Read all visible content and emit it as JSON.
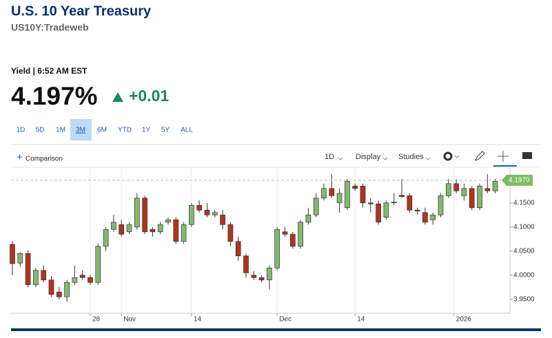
{
  "header": {
    "title": "U.S. 10 Year Treasury",
    "subtitle": "US10Y:Tradeweb",
    "quote_label": "Yield | 6:52 AM EST",
    "price": "4.197%",
    "change": "+0.01"
  },
  "ranges": {
    "items": [
      "1D",
      "5D",
      "1M",
      "3M",
      "6M",
      "YTD",
      "1Y",
      "5Y",
      "ALL"
    ],
    "active": 3
  },
  "toolbar": {
    "comparison": "Comparison",
    "interval": "1D",
    "display": "Display",
    "studies": "Studies"
  },
  "chart_data": {
    "type": "candlestick",
    "open": [
      4.064,
      4.025,
      4.045,
      3.98,
      4.01,
      3.99,
      3.965,
      3.955,
      3.985,
      4.0,
      3.995,
      3.985,
      4.06,
      4.095,
      4.105,
      4.09,
      4.1,
      4.16,
      4.095,
      4.09,
      4.11,
      4.115,
      4.07,
      4.105,
      4.145,
      4.135,
      4.125,
      4.125,
      4.105,
      4.07,
      4.04,
      4.0,
      3.995,
      3.99,
      4.015,
      4.09,
      4.085,
      4.06,
      4.11,
      4.125,
      4.16,
      4.18,
      4.15,
      4.14,
      4.185,
      4.185,
      4.15,
      4.148,
      4.12,
      4.15,
      4.166,
      4.165,
      4.135,
      4.13,
      4.115,
      4.125,
      4.165,
      4.19,
      4.165,
      4.18,
      4.14,
      4.18,
      4.175
    ],
    "high": [
      4.071,
      4.048,
      4.052,
      4.015,
      4.02,
      3.998,
      3.975,
      3.99,
      4.02,
      4.01,
      4.0,
      4.065,
      4.1,
      4.125,
      4.115,
      4.11,
      4.17,
      4.165,
      4.1,
      4.11,
      4.12,
      4.12,
      4.11,
      4.15,
      4.155,
      4.15,
      4.135,
      4.135,
      4.11,
      4.08,
      4.045,
      4.008,
      4.0,
      4.02,
      4.1,
      4.1,
      4.09,
      4.115,
      4.14,
      4.17,
      4.19,
      4.21,
      4.18,
      4.2,
      4.19,
      4.19,
      4.16,
      4.155,
      4.155,
      4.17,
      4.2,
      4.17,
      4.14,
      4.14,
      4.13,
      4.17,
      4.2,
      4.2,
      4.19,
      4.185,
      4.19,
      4.21,
      4.2
    ],
    "low": [
      4.0,
      4.018,
      3.975,
      3.975,
      3.985,
      3.955,
      3.95,
      3.945,
      3.98,
      3.99,
      3.98,
      3.98,
      4.05,
      4.09,
      4.08,
      4.085,
      4.095,
      4.085,
      4.08,
      4.085,
      4.105,
      4.065,
      4.065,
      4.1,
      4.13,
      4.12,
      4.12,
      4.095,
      4.06,
      4.03,
      3.995,
      3.99,
      3.985,
      3.97,
      4.01,
      4.08,
      4.055,
      4.055,
      4.105,
      4.12,
      4.155,
      4.16,
      4.13,
      4.135,
      4.175,
      4.14,
      4.13,
      4.105,
      4.115,
      4.145,
      4.16,
      4.13,
      4.125,
      4.105,
      4.105,
      4.12,
      4.16,
      4.17,
      4.155,
      4.135,
      4.135,
      4.17,
      4.17
    ],
    "close": [
      4.024,
      4.045,
      3.98,
      4.01,
      3.99,
      3.96,
      3.955,
      3.985,
      3.995,
      3.995,
      3.985,
      4.06,
      4.095,
      4.11,
      4.085,
      4.105,
      4.16,
      4.09,
      4.09,
      4.105,
      4.115,
      4.07,
      4.105,
      4.145,
      4.135,
      4.125,
      4.13,
      4.105,
      4.07,
      4.04,
      4.005,
      3.995,
      3.99,
      4.015,
      4.095,
      4.085,
      4.06,
      4.11,
      4.125,
      4.16,
      4.18,
      4.165,
      4.17,
      4.195,
      4.18,
      4.15,
      4.148,
      4.11,
      4.15,
      4.152,
      4.163,
      4.135,
      4.133,
      4.11,
      4.125,
      4.165,
      4.19,
      4.175,
      4.18,
      4.14,
      4.185,
      4.175,
      4.195
    ],
    "up_color": "#82b86f",
    "down_color": "#b2321f",
    "last_value": 4.197,
    "last_label": "4.1970",
    "last_color": "#7dbb5f",
    "ylim": [
      3.921,
      4.224
    ],
    "yticks": [
      {
        "value": 3.95,
        "label": "3.9500"
      },
      {
        "value": 4.0,
        "label": "4.0000"
      },
      {
        "value": 4.05,
        "label": "4.0500"
      },
      {
        "value": 4.1,
        "label": "4.1000"
      },
      {
        "value": 4.15,
        "label": "4.1500"
      }
    ],
    "xticks": [
      {
        "value": 10,
        "label": "28"
      },
      {
        "value": 14,
        "label": "Nov"
      },
      {
        "value": 23,
        "label": "14"
      },
      {
        "value": 34,
        "label": "Dec"
      },
      {
        "value": 44,
        "label": "14"
      },
      {
        "value": 56.7,
        "label": "2026"
      }
    ],
    "grid": true
  }
}
